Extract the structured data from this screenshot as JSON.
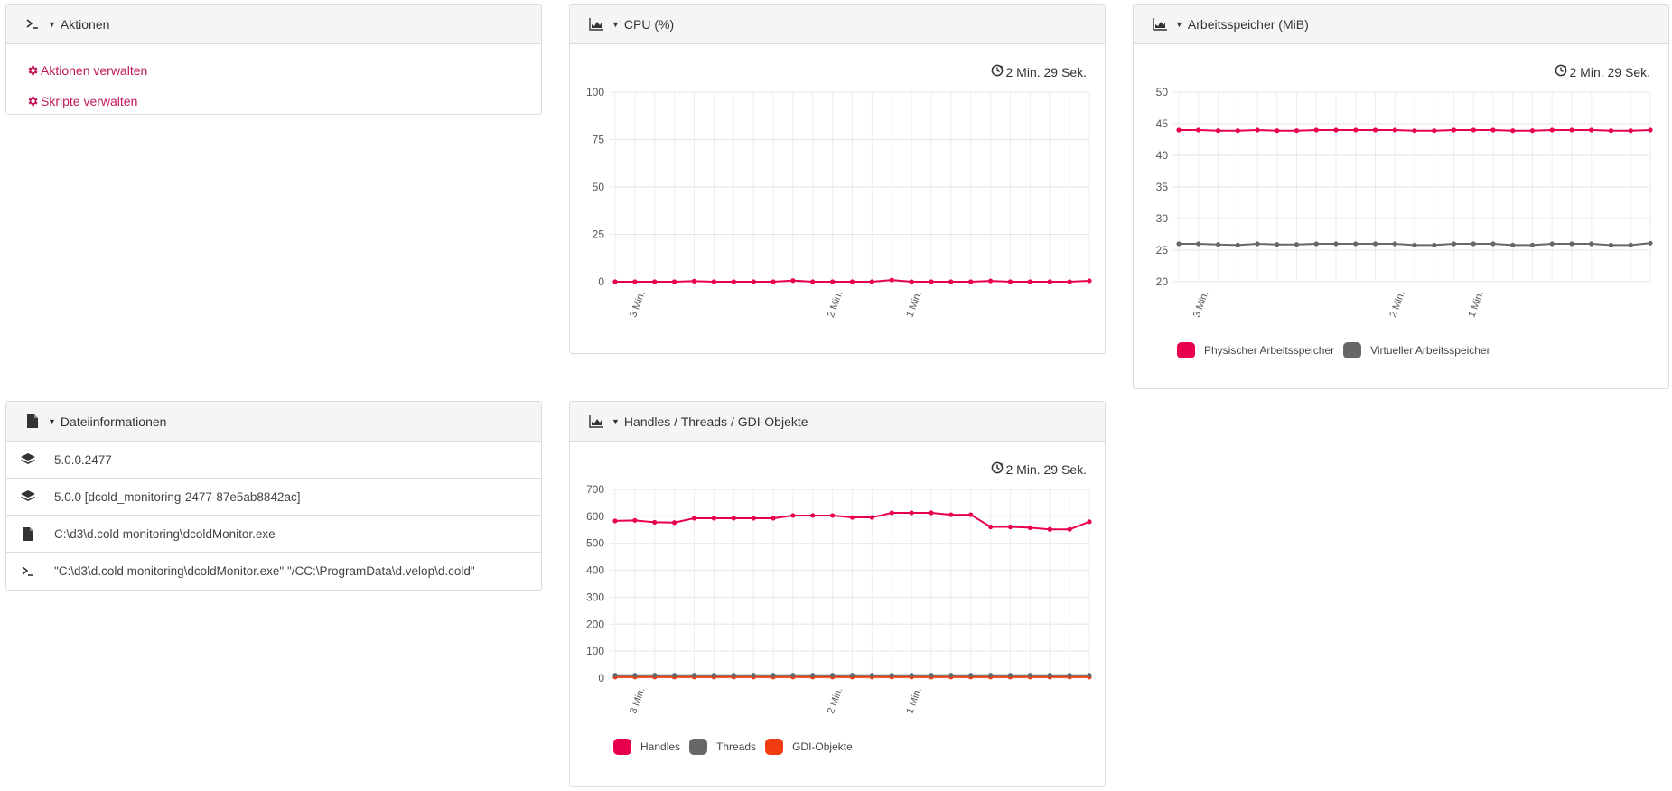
{
  "actions": {
    "title": "Aktionen",
    "items": [
      {
        "label": "Aktionen verwalten"
      },
      {
        "label": "Skripte verwalten"
      }
    ]
  },
  "fileinfo": {
    "title": "Dateiinformationen",
    "rows": [
      {
        "icon": "layers-icon",
        "text": "5.0.0.2477"
      },
      {
        "icon": "layers-icon",
        "text": "5.0.0 [dcold_monitoring-2477-87e5ab8842ac]"
      },
      {
        "icon": "file-icon",
        "text": "C:\\d3\\d.cold monitoring\\dcoldMonitor.exe"
      },
      {
        "icon": "terminal-icon",
        "text": "\"C:\\d3\\d.cold monitoring\\dcoldMonitor.exe\" \"/CC:\\ProgramData\\d.velop\\d.cold\""
      }
    ]
  },
  "colors": {
    "accent": "#c2185b",
    "physical": "#e8004f",
    "virtual": "#676767",
    "gdi": "#f03c0f"
  },
  "cpu": {
    "title": "CPU (%)",
    "timer": "2 Min. 29 Sek.",
    "chart_data": {
      "type": "line",
      "ylim": [
        0,
        100
      ],
      "yticks": [
        0,
        25,
        50,
        75,
        100
      ],
      "x_count": 25,
      "xtick_labels": [
        {
          "index": 1.5,
          "label": "3 Min."
        },
        {
          "index": 11.5,
          "label": "2 Min."
        },
        {
          "index": 15.5,
          "label": "1 Min."
        }
      ],
      "series": [
        {
          "color": "#e8004f",
          "values": [
            0,
            0,
            0,
            0,
            0.3,
            0,
            0,
            0,
            0,
            0.6,
            0,
            0,
            0,
            0,
            0.9,
            0,
            0,
            0,
            0,
            0.4,
            0,
            0,
            0,
            0,
            0.5
          ]
        }
      ]
    }
  },
  "memory": {
    "title": "Arbeitsspeicher (MiB)",
    "timer": "2 Min. 29 Sek.",
    "chart_data": {
      "type": "line",
      "ylim": [
        20,
        50
      ],
      "yticks": [
        20,
        25,
        30,
        35,
        40,
        45,
        50
      ],
      "x_count": 25,
      "xtick_labels": [
        {
          "index": 1.5,
          "label": "3 Min."
        },
        {
          "index": 11.5,
          "label": "2 Min."
        },
        {
          "index": 15.5,
          "label": "1 Min."
        }
      ],
      "series": [
        {
          "name": "Physischer Arbeitsspeicher",
          "color": "#e8004f",
          "values": [
            44,
            44,
            43.9,
            43.9,
            44,
            43.9,
            43.9,
            44,
            44,
            44,
            44,
            44,
            43.9,
            43.9,
            44,
            44,
            44,
            43.9,
            43.9,
            44,
            44,
            44,
            43.9,
            43.9,
            44
          ]
        },
        {
          "name": "Virtueller Arbeitsspeicher",
          "color": "#676767",
          "values": [
            26,
            26,
            25.9,
            25.8,
            26,
            25.9,
            25.9,
            26,
            26,
            26,
            26,
            26,
            25.8,
            25.8,
            26,
            26,
            26,
            25.8,
            25.8,
            26,
            26,
            26,
            25.8,
            25.8,
            26.1
          ]
        }
      ]
    }
  },
  "handles": {
    "title": "Handles / Threads / GDI-Objekte",
    "timer": "2 Min. 29 Sek.",
    "chart_data": {
      "type": "line",
      "ylim": [
        0,
        700
      ],
      "yticks": [
        0,
        100,
        200,
        300,
        400,
        500,
        600,
        700
      ],
      "x_count": 25,
      "xtick_labels": [
        {
          "index": 1.5,
          "label": "3 Min."
        },
        {
          "index": 11.5,
          "label": "2 Min."
        },
        {
          "index": 15.5,
          "label": "1 Min."
        }
      ],
      "series": [
        {
          "name": "Handles",
          "color": "#e8004f",
          "values": [
            583,
            585,
            578,
            577,
            593,
            593,
            593,
            593,
            593,
            603,
            603,
            603,
            596,
            596,
            613,
            613,
            613,
            606,
            606,
            561,
            561,
            558,
            552,
            552,
            580
          ]
        },
        {
          "name": "Threads",
          "color": "#676767",
          "values": [
            11,
            11,
            11,
            11,
            11,
            11,
            11,
            11,
            11,
            11,
            11,
            11,
            11,
            11,
            11,
            11,
            11,
            11,
            11,
            11,
            11,
            11,
            11,
            11,
            11
          ]
        },
        {
          "name": "GDI-Objekte",
          "color": "#f03c0f",
          "values": [
            4,
            4,
            4,
            4,
            4,
            4,
            4,
            4,
            4,
            4,
            4,
            4,
            4,
            4,
            4,
            4,
            4,
            4,
            4,
            4,
            4,
            4,
            4,
            4,
            4
          ]
        }
      ]
    }
  }
}
